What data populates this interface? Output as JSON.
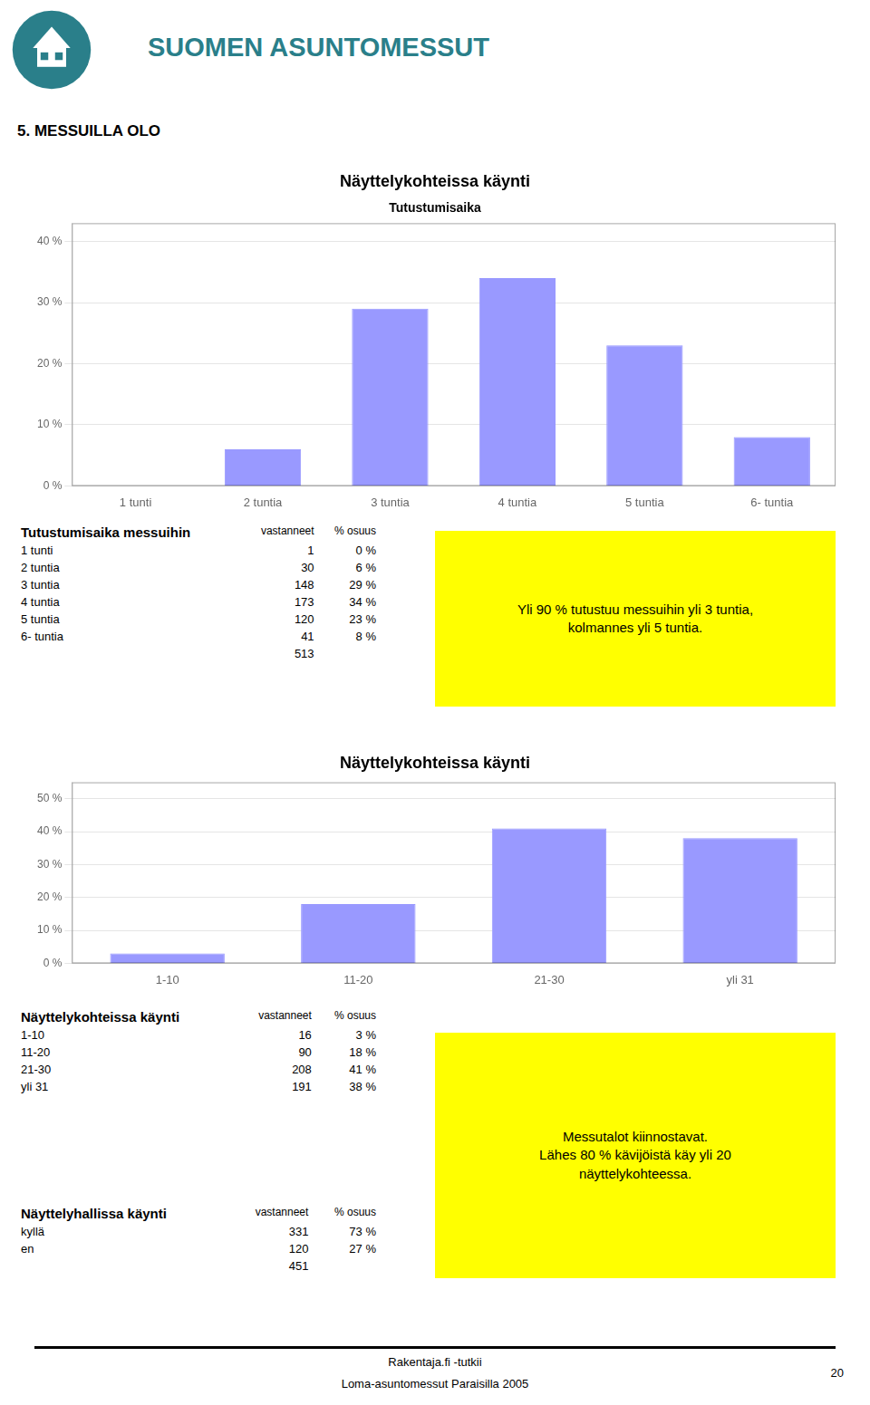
{
  "header": {
    "text": "SUOMEN ASUNTOMESSUT",
    "color": "#2a7f8a"
  },
  "page_title": "5. MESSUILLA OLO",
  "chart_data": [
    {
      "type": "bar",
      "title": "Näyttelykohteissa käynti",
      "subtitle": "Tutustumisaika",
      "categories": [
        "1 tunti",
        "2 tuntia",
        "3 tuntia",
        "4 tuntia",
        "5 tuntia",
        "6- tuntia"
      ],
      "values": [
        0,
        6,
        29,
        34,
        23,
        8
      ],
      "color": "#9999ff",
      "ylim": [
        0,
        43
      ],
      "yticks": [
        {
          "value": 0,
          "label": "0 %"
        },
        {
          "value": 10,
          "label": "10 %"
        },
        {
          "value": 20,
          "label": "20 %"
        },
        {
          "value": 30,
          "label": "30 %"
        },
        {
          "value": 40,
          "label": "40 %"
        }
      ],
      "grid": true
    },
    {
      "type": "bar",
      "title": "Näyttelykohteissa käynti",
      "categories": [
        "1-10",
        "11-20",
        "21-30",
        "yli 31"
      ],
      "values": [
        3,
        18,
        41,
        38
      ],
      "color": "#9999ff",
      "ylim": [
        0,
        55
      ],
      "yticks": [
        {
          "value": 0,
          "label": "0 %"
        },
        {
          "value": 10,
          "label": "10 %"
        },
        {
          "value": 20,
          "label": "20 %"
        },
        {
          "value": 30,
          "label": "30 %"
        },
        {
          "value": 40,
          "label": "40 %"
        },
        {
          "value": 50,
          "label": "50 %"
        }
      ],
      "grid": true
    }
  ],
  "tables": [
    {
      "title": "Tutustumisaika messuihin",
      "columns": [
        "vastanneet",
        "% osuus"
      ],
      "rows": [
        [
          "1 tunti",
          "1",
          "0 %"
        ],
        [
          "2 tuntia",
          "30",
          "6 %"
        ],
        [
          "3 tuntia",
          "148",
          "29 %"
        ],
        [
          "4 tuntia",
          "173",
          "34 %"
        ],
        [
          "5 tuntia",
          "120",
          "23 %"
        ],
        [
          "6- tuntia",
          "41",
          "8 %"
        ],
        [
          null,
          "513",
          null
        ]
      ]
    },
    {
      "title": "Näyttelykohteissa käynti",
      "columns": [
        "vastanneet",
        "% osuus"
      ],
      "rows": [
        [
          "1-10",
          "16",
          "3 %"
        ],
        [
          "11-20",
          "90",
          "18 %"
        ],
        [
          "21-30",
          "208",
          "41 %"
        ],
        [
          "yli 31",
          "191",
          "38 %"
        ]
      ]
    },
    {
      "title": "Näyttelyhallissa käynti",
      "columns": [
        "vastanneet",
        "% osuus"
      ],
      "rows": [
        [
          "kyllä",
          "331",
          "73 %"
        ],
        [
          "en",
          "120",
          "27 %"
        ],
        [
          null,
          "451",
          null
        ]
      ]
    }
  ],
  "highlights": {
    "color": "#ffff00",
    "texts": [
      "Yli 90 % tutustuu messuihin yli 3 tuntia,\nkolmannes yli 5 tuntia.",
      "Messutalot kiinnostavat.\nLähes 80 % kävijöistä käy yli 20\nnäyttelykohteessa."
    ]
  },
  "footer": [
    "Rakentaja.fi -tutkii",
    "Loma-asuntomessut Paraisilla 2005"
  ],
  "page_number": "20"
}
